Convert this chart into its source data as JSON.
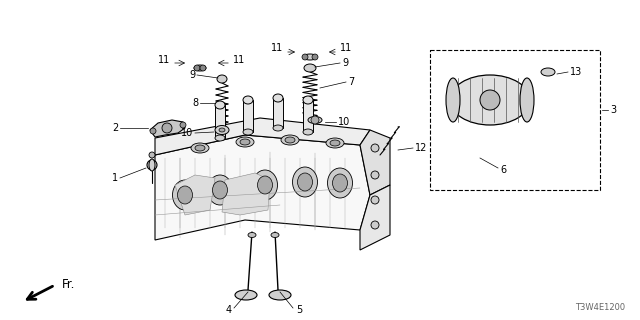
{
  "bg_color": "#ffffff",
  "fig_width": 6.4,
  "fig_height": 3.2,
  "dpi": 100,
  "part_number": "T3W4E1200",
  "black": "#000000",
  "gray": "#888888",
  "darkgray": "#444444"
}
